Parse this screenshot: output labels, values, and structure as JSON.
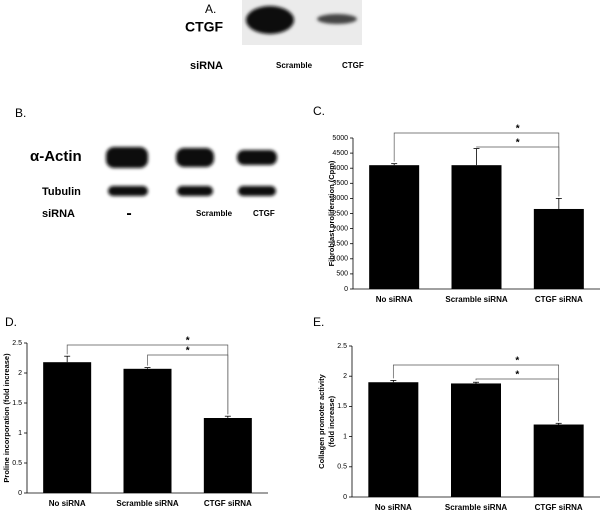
{
  "blot_a": {
    "label": "A.",
    "protein": "CTGF",
    "row_label": "siRNA",
    "lanes": [
      "Scramble",
      "CTGF"
    ]
  },
  "blot_b": {
    "label": "B.",
    "proteins": [
      "α-Actin",
      "Tubulin"
    ],
    "row_label": "siRNA",
    "lanes": [
      "-",
      "Scramble",
      "CTGF"
    ]
  },
  "chart_data": [
    {
      "type": "bar",
      "label": "C.",
      "ylabel": "Fibroblast proliferation (Cpm)",
      "categories": [
        "No siRNA",
        "Scramble siRNA",
        "CTGF siRNA"
      ],
      "values": [
        4100,
        4100,
        2650
      ],
      "errors": [
        50,
        550,
        350
      ],
      "color": "#000000",
      "ylim": [
        0,
        5000
      ],
      "yticks": [
        0,
        500,
        1000,
        1500,
        2000,
        2500,
        3000,
        3500,
        4000,
        4500,
        5000
      ],
      "annotations": [
        "*",
        "*"
      ]
    },
    {
      "type": "bar",
      "label": "D.",
      "ylabel": "Proline incorporation (fold increase)",
      "categories": [
        "No siRNA",
        "Scramble siRNA",
        "CTGF siRNA"
      ],
      "values": [
        2.18,
        2.07,
        1.25
      ],
      "errors": [
        0.1,
        0.02,
        0.03
      ],
      "color": "#000000",
      "ylim": [
        0,
        2.5
      ],
      "yticks": [
        0,
        0.5,
        1,
        1.5,
        2,
        2.5
      ],
      "annotations": [
        "*",
        "*"
      ]
    },
    {
      "type": "bar",
      "label": "E.",
      "ylabel": [
        "Collagen promoter activity",
        "(fold increase)"
      ],
      "categories": [
        "No siRNA",
        "Scramble siRNA",
        "CTGF siRNA"
      ],
      "values": [
        1.9,
        1.88,
        1.2
      ],
      "errors": [
        0.03,
        0.02,
        0.02
      ],
      "color": "#000000",
      "ylim": [
        0,
        2.5
      ],
      "yticks": [
        0,
        0.5,
        1,
        1.5,
        2,
        2.5
      ],
      "annotations": [
        "*",
        "*"
      ]
    }
  ]
}
